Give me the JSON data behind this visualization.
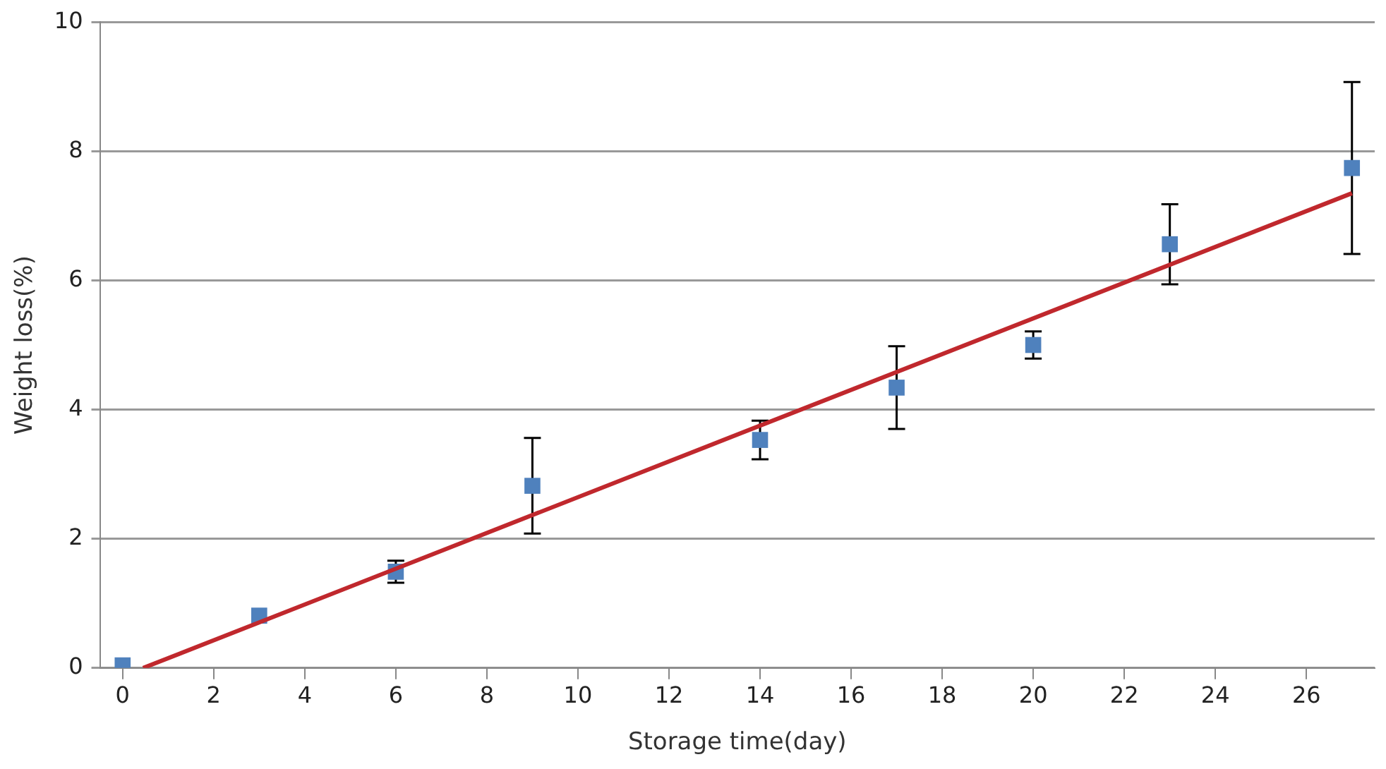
{
  "chart_data": {
    "type": "scatter",
    "xlabel": "Storage time(day)",
    "ylabel": "Weight loss(%)",
    "xlim": [
      -0.5,
      27.5
    ],
    "xticks": [
      0,
      2,
      4,
      6,
      8,
      10,
      12,
      14,
      16,
      18,
      20,
      22,
      24,
      26
    ],
    "ylim": [
      0,
      10
    ],
    "yticks": [
      0,
      2,
      4,
      6,
      8,
      10
    ],
    "grid": "y",
    "legend": false,
    "series": [
      {
        "marker": "square",
        "color": "#4f81bd",
        "x": [
          0,
          3,
          6,
          9,
          14,
          17,
          20,
          23,
          27
        ],
        "values": [
          0.04,
          0.81,
          1.49,
          2.82,
          3.53,
          4.34,
          5.0,
          6.56,
          7.74
        ],
        "errors": [
          null,
          null,
          0.17,
          0.74,
          0.3,
          0.64,
          0.21,
          0.62,
          1.33
        ]
      },
      {
        "type": "line",
        "marker": "none",
        "color": "#c0282d",
        "x": [
          0.45,
          27
        ],
        "values": [
          0,
          7.35
        ]
      }
    ]
  }
}
